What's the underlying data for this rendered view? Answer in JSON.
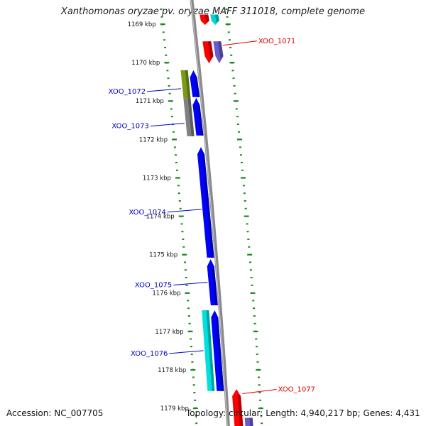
{
  "header": {
    "title": "Xanthomonas oryzae pv. oryzae MAFF 311018, complete genome"
  },
  "footer": {
    "accession": "Accession: NC_007705",
    "summary": "Topology: circular; Length: 4,940,217 bp; Genes: 4,431"
  },
  "map": {
    "start_kbp": 1168.8,
    "end_kbp": 1179.4,
    "kbp_labels": [
      "1169 kbp",
      "1170 kbp",
      "1171 kbp",
      "1172 kbp",
      "1173 kbp",
      "1174 kbp",
      "1175 kbp",
      "1176 kbp",
      "1177 kbp",
      "1178 kbp",
      "1179 kbp"
    ],
    "colors": {
      "backbone": "#8a8a8a",
      "tick": "#1c8a1c",
      "label_forward": "#0000cc",
      "label_reverse": "#dd0000"
    },
    "genes": [
      {
        "name": "",
        "start_kbp": 1168.75,
        "end_kbp": 1169.02,
        "lane": "reverse_inner",
        "direction": "reverse",
        "color": "#ff0000"
      },
      {
        "name": "",
        "start_kbp": 1168.75,
        "end_kbp": 1169.02,
        "lane": "reverse_outer",
        "direction": "reverse",
        "color": "#00d4d4"
      },
      {
        "name": "",
        "start_kbp": 1169.45,
        "end_kbp": 1170.02,
        "lane": "reverse_inner",
        "direction": "reverse",
        "color": "#ff0000"
      },
      {
        "name": "XOO_1071",
        "start_kbp": 1169.45,
        "end_kbp": 1170.02,
        "lane": "reverse_outer",
        "direction": "reverse",
        "color": "#6a5acd",
        "label_kbp": 1169.55
      },
      {
        "name": "",
        "start_kbp": 1170.2,
        "end_kbp": 1170.9,
        "lane": "forward_inner",
        "direction": "forward",
        "color": "#0000ff"
      },
      {
        "name": "XOO_1072",
        "start_kbp": 1170.2,
        "end_kbp": 1170.93,
        "lane": "forward_outer",
        "direction": "none",
        "color": "#7a9a1a",
        "label_kbp": 1170.68
      },
      {
        "name": "",
        "start_kbp": 1170.92,
        "end_kbp": 1171.9,
        "lane": "forward_inner",
        "direction": "forward",
        "color": "#0000ff"
      },
      {
        "name": "XOO_1073",
        "start_kbp": 1170.93,
        "end_kbp": 1171.92,
        "lane": "forward_outer",
        "direction": "none",
        "color": "#808080",
        "label_kbp": 1171.58
      },
      {
        "name": "XOO_1074",
        "start_kbp": 1172.2,
        "end_kbp": 1175.08,
        "lane": "forward_inner",
        "direction": "forward",
        "color": "#0000ff",
        "label_kbp": 1173.82
      },
      {
        "name": "XOO_1075",
        "start_kbp": 1175.12,
        "end_kbp": 1176.32,
        "lane": "forward_inner",
        "direction": "forward",
        "color": "#0000ff",
        "label_kbp": 1175.72
      },
      {
        "name": "",
        "start_kbp": 1176.45,
        "end_kbp": 1178.55,
        "lane": "forward_inner",
        "direction": "forward",
        "color": "#0000ff"
      },
      {
        "name": "XOO_1076",
        "start_kbp": 1176.45,
        "end_kbp": 1178.55,
        "lane": "forward_outer",
        "direction": "none",
        "color": "#00e0e0",
        "label_kbp": 1177.5
      },
      {
        "name": "XOO_1077",
        "start_kbp": 1178.5,
        "end_kbp": 1179.6,
        "lane": "reverse_inner",
        "direction": "forward",
        "color": "#ff0000",
        "label_kbp": 1178.62
      },
      {
        "name": "",
        "start_kbp": 1179.25,
        "end_kbp": 1179.6,
        "lane": "reverse_outer",
        "direction": "none",
        "color": "#6a5acd"
      }
    ]
  }
}
